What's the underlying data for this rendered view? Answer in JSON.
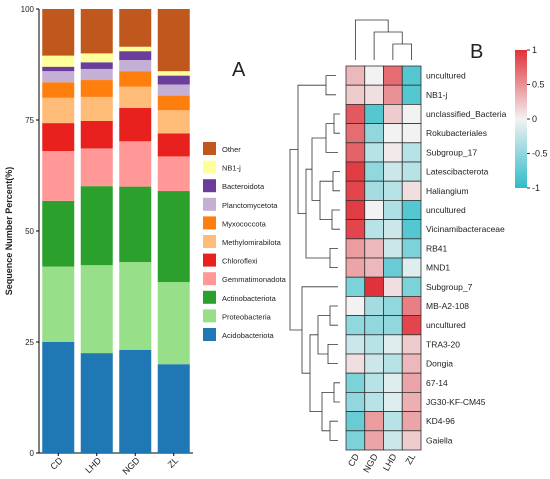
{
  "panel_labels": {
    "a": "A",
    "b": "B"
  },
  "chart_data": [
    {
      "type": "bar",
      "stacked": true,
      "ylabel": "Sequence Number Percent(%)",
      "ylim": [
        0,
        100
      ],
      "yticks": [
        0,
        25,
        50,
        75,
        100
      ],
      "categories": [
        "CD",
        "LHD",
        "NGD",
        "ZL"
      ],
      "legend_placement": "right",
      "series": [
        {
          "name": "Acidobacteriota",
          "color": "#1f77b4",
          "values": [
            25.0,
            22.5,
            23.2,
            20.0
          ]
        },
        {
          "name": "Proteobacteria",
          "color": "#98df8a",
          "values": [
            17.0,
            19.8,
            19.8,
            18.5
          ]
        },
        {
          "name": "Actinobacteriota",
          "color": "#2ca02c",
          "values": [
            14.8,
            17.8,
            17.0,
            20.5
          ]
        },
        {
          "name": "Gemmatimonadota",
          "color": "#ff9896",
          "values": [
            11.2,
            8.5,
            10.2,
            7.8
          ]
        },
        {
          "name": "Chloroflexi",
          "color": "#e8201e",
          "values": [
            6.3,
            6.2,
            7.5,
            5.2
          ]
        },
        {
          "name": "Methylomirabilota",
          "color": "#ffbb78",
          "values": [
            5.7,
            5.4,
            4.8,
            5.2
          ]
        },
        {
          "name": "Myxococcota",
          "color": "#ff7f0e",
          "values": [
            3.5,
            3.8,
            3.5,
            3.3
          ]
        },
        {
          "name": "Planctomycetota",
          "color": "#c5b0d5",
          "values": [
            2.5,
            2.5,
            2.5,
            2.5
          ]
        },
        {
          "name": "Bacteroidota",
          "color": "#6a3d9a",
          "values": [
            1.0,
            1.5,
            2.0,
            2.0
          ]
        },
        {
          "name": "NB1-j",
          "color": "#ffff99",
          "values": [
            2.5,
            2.0,
            1.0,
            1.0
          ]
        },
        {
          "name": "Other",
          "color": "#c0581e",
          "values": [
            10.5,
            10.0,
            8.5,
            14.0
          ]
        }
      ]
    },
    {
      "type": "heatmap",
      "columns": [
        "CD",
        "NGD",
        "LHD",
        "ZL"
      ],
      "rows": [
        "uncultured",
        "NB1-j",
        "unclassified_Bacteria",
        "Rokubacteriales",
        "Subgroup_17",
        "Latescibacterota",
        "Haliangium",
        "uncultured",
        "Vicinamibacteraceae",
        "RB41",
        "MND1",
        "Subgroup_7",
        "MB-A2-108",
        "uncultured",
        "TRA3-20",
        "Dongia",
        "67-14",
        "JG30-KF-CM45",
        "KD4-96",
        "Gaiella"
      ],
      "values": [
        [
          0.3,
          0.0,
          0.7,
          -0.8
        ],
        [
          0.2,
          0.1,
          0.5,
          -0.8
        ],
        [
          0.8,
          -0.8,
          0.2,
          0.0
        ],
        [
          0.7,
          -0.5,
          0.0,
          0.0
        ],
        [
          0.75,
          -0.3,
          0.05,
          -0.3
        ],
        [
          0.95,
          -0.5,
          -0.2,
          -0.3
        ],
        [
          0.9,
          -0.4,
          -0.3,
          0.1
        ],
        [
          0.95,
          0.0,
          -0.35,
          -0.8
        ],
        [
          0.9,
          -0.3,
          -0.2,
          -0.8
        ],
        [
          0.45,
          0.3,
          -0.2,
          -0.6
        ],
        [
          0.4,
          0.3,
          -0.7,
          -0.1
        ],
        [
          -0.6,
          1.0,
          0.1,
          -0.6
        ],
        [
          0.0,
          -0.4,
          -0.5,
          0.6
        ],
        [
          -0.5,
          -0.5,
          -0.5,
          0.9
        ],
        [
          -0.2,
          -0.3,
          -0.1,
          0.2
        ],
        [
          0.1,
          -0.2,
          -0.3,
          0.3
        ],
        [
          -0.6,
          -0.3,
          -0.1,
          0.4
        ],
        [
          -0.5,
          -0.3,
          -0.1,
          0.35
        ],
        [
          -0.7,
          0.45,
          -0.3,
          0.4
        ],
        [
          -0.6,
          0.4,
          -0.2,
          0.2
        ]
      ],
      "colorbar": {
        "ticks": [
          1,
          0.5,
          0,
          -0.5,
          -1
        ],
        "labels": [
          "1",
          "0.5",
          "0",
          "-0.5",
          "-1"
        ],
        "colors": {
          "low": "#2ebcc9",
          "mid": "#f2f2f2",
          "high": "#e0323a"
        }
      }
    }
  ]
}
